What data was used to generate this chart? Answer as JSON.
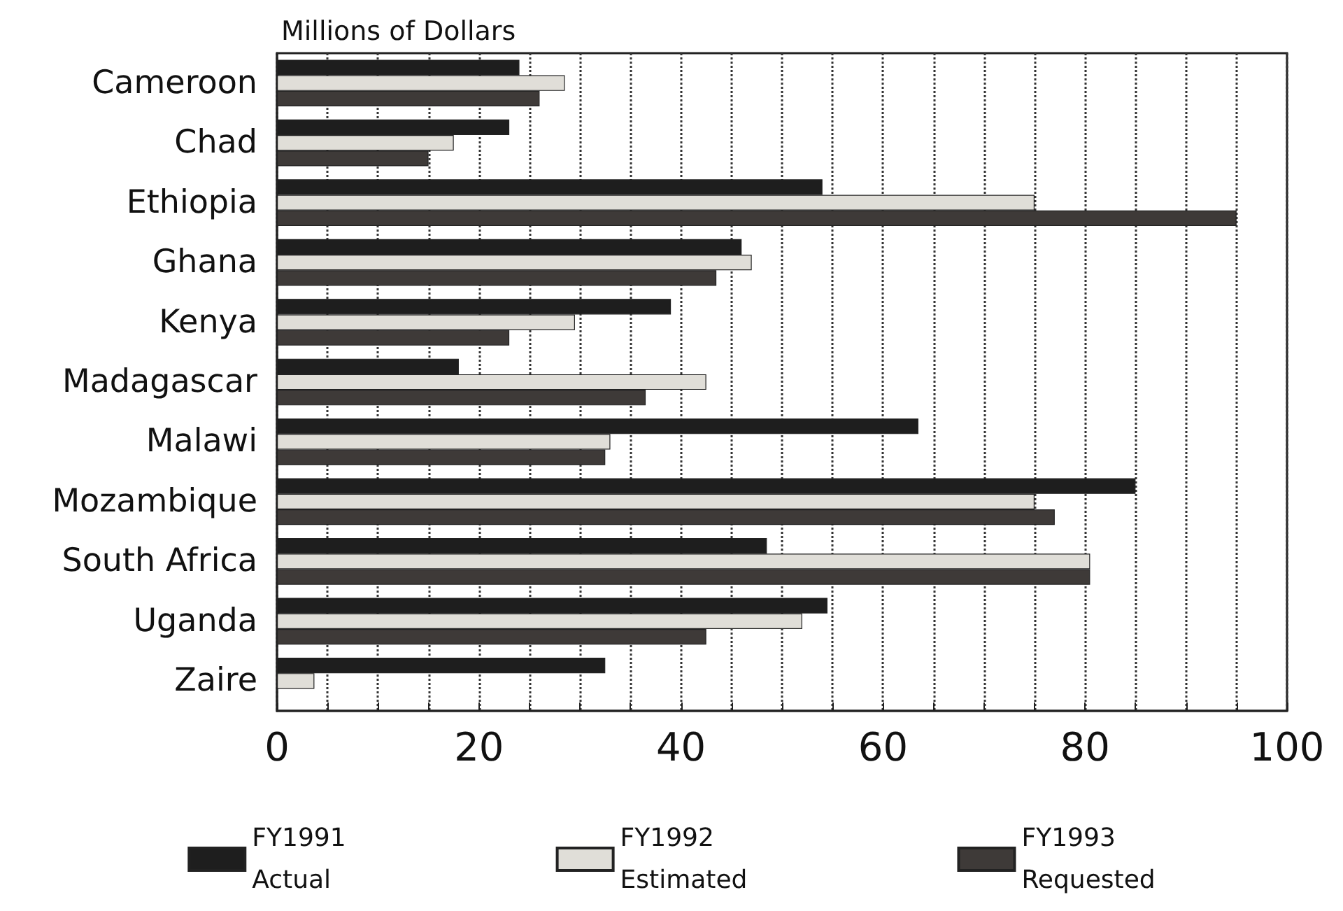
{
  "chart_data": {
    "type": "bar",
    "orientation": "horizontal",
    "xlabel": "Millions of Dollars",
    "categories": [
      "Cameroon",
      "Chad",
      "Ethiopia",
      "Ghana",
      "Kenya",
      "Madagascar",
      "Malawi",
      "Mozambique",
      "South Africa",
      "Uganda",
      "Zaire"
    ],
    "series": [
      {
        "name": "FY1991\nActual",
        "color": "#1e1e1e",
        "values": [
          24,
          23,
          54,
          46,
          39,
          18,
          63.5,
          85,
          48.5,
          54.5,
          32.5
        ]
      },
      {
        "name": "FY1992\nEstimated",
        "color": "#e0ded8",
        "values": [
          28.5,
          17.5,
          75,
          47,
          29.5,
          42.5,
          33,
          75,
          80.5,
          52,
          3.7
        ]
      },
      {
        "name": "FY1993\nRequested",
        "color": "#3e3a38",
        "values": [
          26,
          15,
          95,
          43.5,
          23,
          36.5,
          32.5,
          77,
          80.5,
          42.5,
          null
        ]
      }
    ],
    "xlim": [
      0,
      100
    ],
    "xticks": [
      0,
      {
        "value": 5,
        "label": null
      },
      {
        "value": 10,
        "label": null
      },
      {
        "value": 15,
        "label": null
      },
      20,
      {
        "value": 25,
        "label": null
      },
      {
        "value": 30,
        "label": null
      },
      {
        "value": 35,
        "label": null
      },
      40,
      {
        "value": 45,
        "label": null
      },
      {
        "value": 50,
        "label": null
      },
      {
        "value": 55,
        "label": null
      },
      60,
      {
        "value": 65,
        "label": null
      },
      {
        "value": 70,
        "label": null
      },
      {
        "value": 75,
        "label": null
      },
      80,
      {
        "value": 85,
        "label": null
      },
      {
        "value": 90,
        "label": null
      },
      {
        "value": 95,
        "label": null
      },
      100
    ],
    "grid": "x",
    "line_style": "dotted",
    "legend": "bottom"
  }
}
